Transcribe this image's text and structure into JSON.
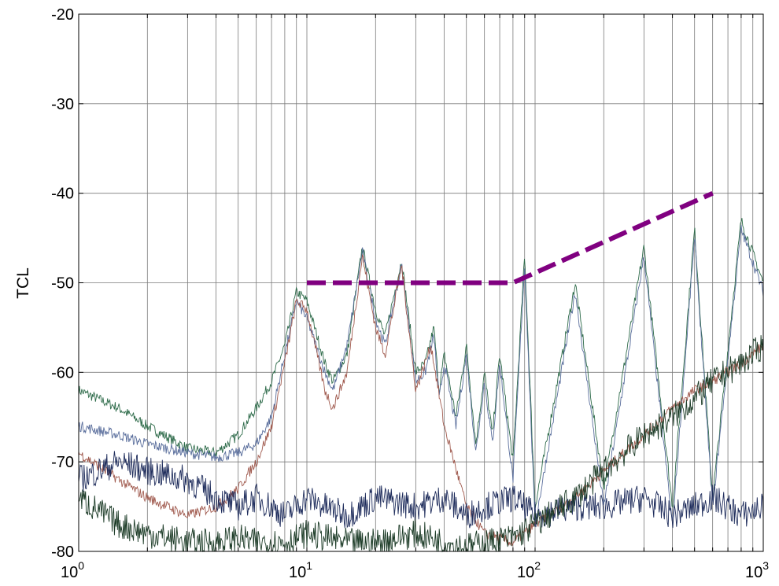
{
  "chart_data": {
    "type": "line",
    "title": "",
    "xlabel": "",
    "ylabel": "TCL",
    "xscale": "log",
    "xlim": [
      1,
      1000
    ],
    "ylim": [
      -80,
      -20
    ],
    "x_ticks": [
      {
        "value": 1,
        "base": "10",
        "exp": "0"
      },
      {
        "value": 10,
        "base": "10",
        "exp": "1"
      },
      {
        "value": 100,
        "base": "10",
        "exp": "2"
      },
      {
        "value": 1000,
        "base": "10",
        "exp": "3"
      }
    ],
    "y_ticks": [
      {
        "value": -20,
        "label": "-20"
      },
      {
        "value": -30,
        "label": "-30"
      },
      {
        "value": -40,
        "label": "-40"
      },
      {
        "value": -50,
        "label": "-50"
      },
      {
        "value": -60,
        "label": "-60"
      },
      {
        "value": -70,
        "label": "-70"
      },
      {
        "value": -80,
        "label": "-80"
      }
    ],
    "grid": true,
    "legend": "none",
    "limit_line": {
      "color": "#800080",
      "style": "dashed",
      "x": [
        10,
        80,
        600
      ],
      "y": [
        -50,
        -50,
        -40
      ]
    },
    "series": [
      {
        "color": "#2e6b4a",
        "x": [
          1,
          1.5,
          2,
          3,
          4,
          5,
          6,
          7,
          8,
          9,
          10,
          12,
          13,
          15,
          17.5,
          20,
          22,
          26,
          30,
          33,
          36,
          38,
          40,
          45,
          50,
          55,
          60,
          65,
          70,
          80,
          90,
          100,
          150,
          200,
          300,
          400,
          500,
          600,
          800,
          1000
        ],
        "y": [
          -62,
          -64,
          -66,
          -68.5,
          -69,
          -67,
          -64,
          -61,
          -57,
          -51,
          -52,
          -59,
          -61,
          -58,
          -46,
          -53,
          -56,
          -47.5,
          -60,
          -59,
          -55,
          -62,
          -58,
          -65,
          -57,
          -68,
          -60,
          -67,
          -58,
          -70,
          -47,
          -75,
          -50,
          -73,
          -46,
          -75,
          -44,
          -74,
          -43,
          -50
        ]
      },
      {
        "color": "#5a6e9c",
        "x": [
          1,
          1.5,
          2,
          3,
          4,
          5,
          6,
          7,
          8,
          9,
          10,
          12,
          13,
          15,
          17.5,
          20,
          22,
          26,
          30,
          33,
          36,
          38,
          40,
          45,
          50,
          55,
          60,
          65,
          70,
          80,
          90,
          100,
          150,
          200,
          300,
          400,
          500,
          600,
          800,
          1000
        ],
        "y": [
          -66,
          -67,
          -68,
          -69,
          -69.5,
          -69,
          -68,
          -65,
          -58,
          -52,
          -54,
          -60,
          -62,
          -57,
          -46.5,
          -54,
          -57,
          -48,
          -61,
          -60,
          -56,
          -63,
          -59,
          -66,
          -58,
          -69,
          -61,
          -68,
          -59,
          -72,
          -48,
          -77,
          -51,
          -75,
          -47,
          -77,
          -45,
          -75,
          -44,
          -51
        ]
      },
      {
        "color": "#a05a4e",
        "x": [
          1,
          1.5,
          2,
          3,
          4,
          5,
          6,
          7,
          8,
          9,
          10,
          12,
          13,
          15,
          17.5,
          20,
          22,
          26,
          30,
          35,
          40,
          50,
          60,
          80,
          100,
          150,
          200,
          300,
          400,
          500,
          600,
          800,
          1000
        ],
        "y": [
          -69,
          -72,
          -74,
          -76,
          -75,
          -73,
          -70,
          -66,
          -59,
          -52,
          -53,
          -62,
          -64,
          -60,
          -47,
          -55,
          -58,
          -48,
          -62,
          -57,
          -66,
          -75,
          -78,
          -79,
          -77,
          -74,
          -71,
          -67,
          -64,
          -62,
          -61,
          -59,
          -57
        ]
      },
      {
        "color": "#1f2d5c",
        "x": [
          1,
          1.5,
          2,
          3,
          4,
          5,
          6,
          7,
          8,
          10,
          12,
          15,
          20,
          30,
          40,
          50,
          60,
          80,
          100,
          150,
          200,
          300,
          400,
          500,
          600,
          800,
          1000
        ],
        "y": [
          -72,
          -70,
          -71,
          -72,
          -74,
          -75,
          -74,
          -75,
          -76,
          -74,
          -75,
          -76,
          -74,
          -75,
          -74,
          -76,
          -75,
          -74,
          -76,
          -75,
          -75,
          -74,
          -76,
          -75,
          -74,
          -76,
          -75
        ]
      },
      {
        "color": "#1d3c28",
        "x": [
          1,
          1.5,
          2,
          3,
          4,
          5,
          6,
          8,
          10,
          15,
          20,
          30,
          40,
          50,
          60,
          80,
          100,
          150,
          200,
          300,
          400,
          500,
          600,
          800,
          1000
        ],
        "y": [
          -74,
          -77,
          -78,
          -79,
          -79,
          -78.5,
          -79,
          -79,
          -78,
          -79,
          -79,
          -78,
          -79,
          -79.5,
          -79,
          -78.5,
          -77,
          -74,
          -71,
          -67,
          -65,
          -63,
          -61,
          -59,
          -57
        ]
      }
    ]
  }
}
